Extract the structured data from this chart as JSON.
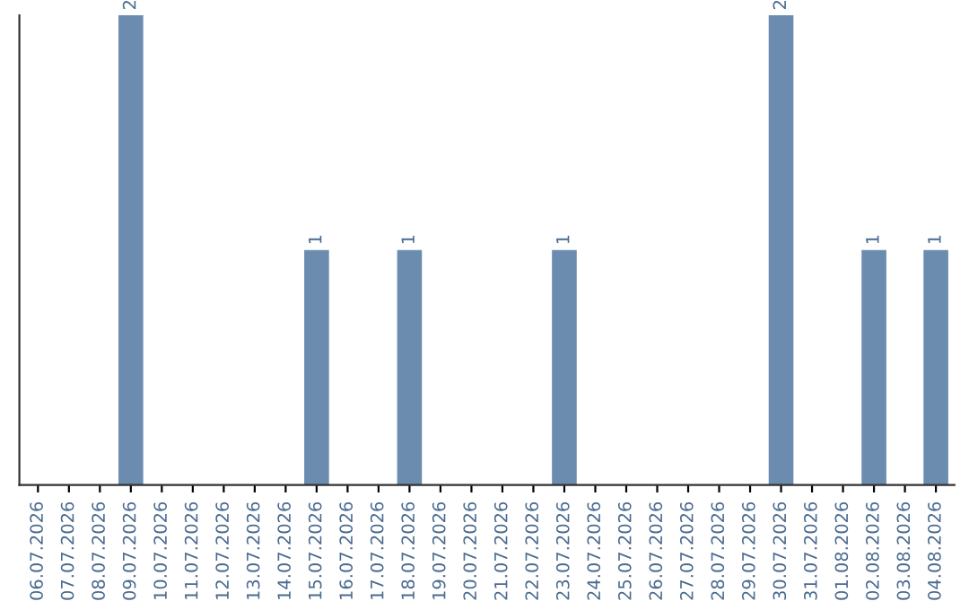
{
  "chart_data": {
    "type": "bar",
    "categories": [
      "06.07.2026",
      "07.07.2026",
      "08.07.2026",
      "09.07.2026",
      "10.07.2026",
      "11.07.2026",
      "12.07.2026",
      "13.07.2026",
      "14.07.2026",
      "15.07.2026",
      "16.07.2026",
      "17.07.2026",
      "18.07.2026",
      "19.07.2026",
      "20.07.2026",
      "21.07.2026",
      "22.07.2026",
      "23.07.2026",
      "24.07.2026",
      "25.07.2026",
      "26.07.2026",
      "27.07.2026",
      "28.07.2026",
      "29.07.2026",
      "30.07.2026",
      "31.07.2026",
      "01.08.2026",
      "02.08.2026",
      "03.08.2026",
      "04.08.2026"
    ],
    "values": [
      0,
      0,
      0,
      2,
      0,
      0,
      0,
      0,
      0,
      1,
      0,
      0,
      1,
      0,
      0,
      0,
      0,
      1,
      0,
      0,
      0,
      0,
      0,
      0,
      2,
      0,
      0,
      1,
      0,
      1
    ],
    "value_labels": [
      null,
      null,
      null,
      "2",
      null,
      null,
      null,
      null,
      null,
      "1",
      null,
      null,
      "1",
      null,
      null,
      null,
      null,
      "1",
      null,
      null,
      null,
      null,
      null,
      null,
      "2",
      null,
      null,
      "1",
      null,
      "1"
    ],
    "color": "#6b8cae",
    "tick_labels": "x",
    "grid": false,
    "legend": false
  }
}
